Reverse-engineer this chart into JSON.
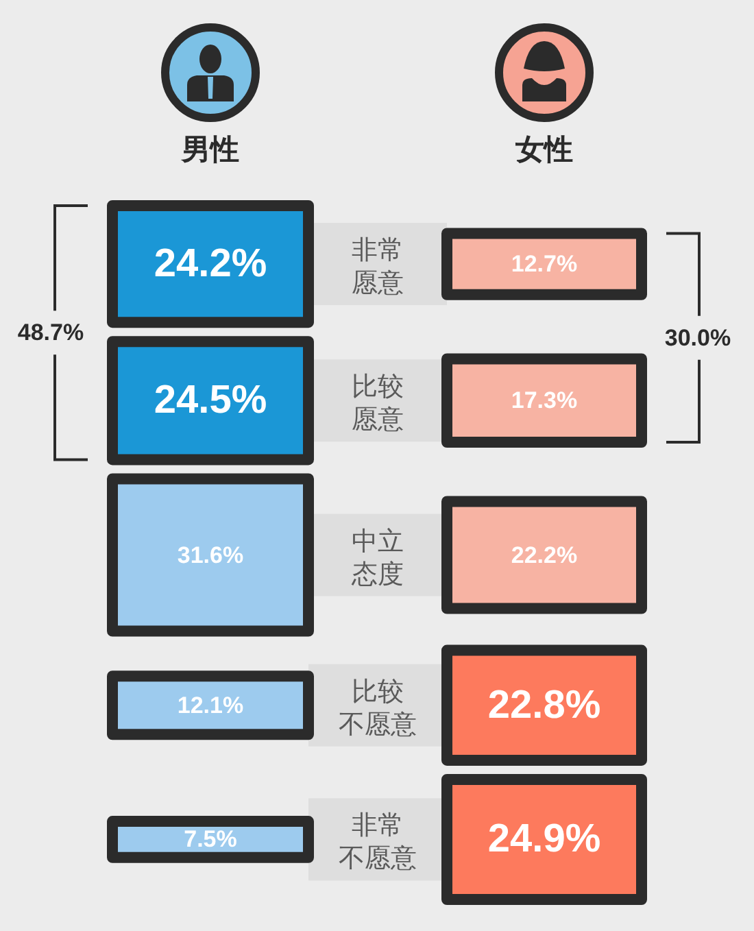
{
  "chart_data": {
    "type": "other",
    "categories": [
      "非常愿意",
      "比较愿意",
      "中立态度",
      "比较不愿意",
      "非常不愿意"
    ],
    "series": [
      {
        "name": "男性",
        "values": [
          24.2,
          24.5,
          31.6,
          12.1,
          7.5
        ],
        "value_labels": [
          "24.2%",
          "24.5%",
          "31.6%",
          "12.1%",
          "7.5%"
        ],
        "colors": [
          "#1b97d6",
          "#1b97d6",
          "#9dcbee",
          "#9dcbee",
          "#9dcbee"
        ]
      },
      {
        "name": "女性",
        "values": [
          12.7,
          17.3,
          22.2,
          22.8,
          24.9
        ],
        "value_labels": [
          "12.7%",
          "17.3%",
          "22.2%",
          "22.8%",
          "24.9%"
        ],
        "colors": [
          "#f7b3a3",
          "#f7b3a3",
          "#f7b3a3",
          "#fd7a5d",
          "#fd7a5d"
        ]
      }
    ],
    "annotations": [
      "48.7%",
      "30.0%"
    ]
  }
}
